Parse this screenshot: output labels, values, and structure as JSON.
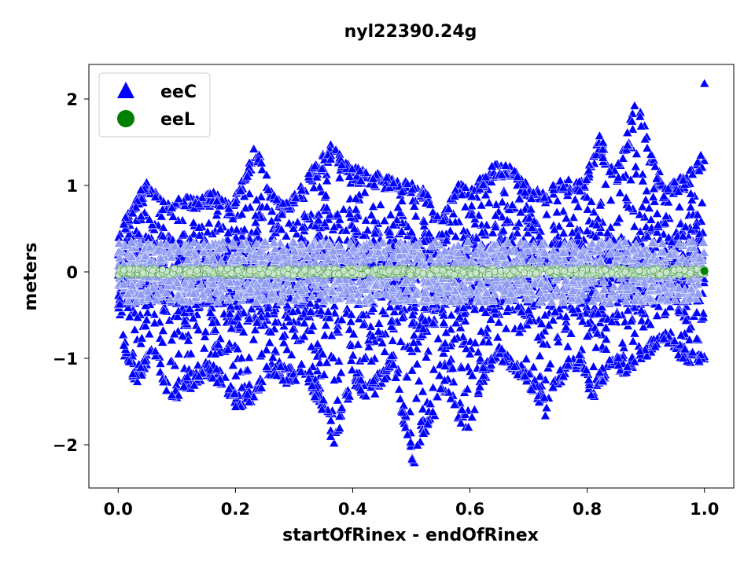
{
  "chart_data": {
    "type": "scatter",
    "title": "nyl22390.24g",
    "xlabel": "startOfRinex - endOfRinex",
    "ylabel": "meters",
    "xlim": [
      -0.05,
      1.05
    ],
    "ylim": [
      -2.5,
      2.4
    ],
    "xticks": [
      0.0,
      0.2,
      0.4,
      0.6,
      0.8,
      1.0
    ],
    "xtick_labels": [
      "0.0",
      "0.2",
      "0.4",
      "0.6",
      "0.8",
      "1.0"
    ],
    "yticks": [
      -2,
      -1,
      0,
      1,
      2
    ],
    "ytick_labels": [
      "−2",
      "−1",
      "0",
      "1",
      "2"
    ],
    "grid": false,
    "legend_position": "top-left",
    "series": [
      {
        "name": "eeC",
        "marker": "triangle",
        "color": "#0000ff",
        "envelope_upper": [
          [
            0.0,
            0.6
          ],
          [
            0.02,
            0.7
          ],
          [
            0.05,
            1.1
          ],
          [
            0.08,
            0.8
          ],
          [
            0.1,
            0.9
          ],
          [
            0.13,
            0.85
          ],
          [
            0.16,
            0.95
          ],
          [
            0.19,
            0.8
          ],
          [
            0.21,
            1.05
          ],
          [
            0.235,
            1.5
          ],
          [
            0.26,
            1.0
          ],
          [
            0.29,
            0.8
          ],
          [
            0.32,
            1.1
          ],
          [
            0.36,
            1.5
          ],
          [
            0.39,
            1.3
          ],
          [
            0.41,
            1.2
          ],
          [
            0.44,
            1.15
          ],
          [
            0.46,
            1.1
          ],
          [
            0.49,
            1.05
          ],
          [
            0.52,
            1.0
          ],
          [
            0.55,
            0.6
          ],
          [
            0.58,
            1.05
          ],
          [
            0.6,
            1.0
          ],
          [
            0.63,
            1.2
          ],
          [
            0.66,
            1.3
          ],
          [
            0.7,
            1.0
          ],
          [
            0.73,
            0.95
          ],
          [
            0.76,
            1.1
          ],
          [
            0.79,
            1.05
          ],
          [
            0.82,
            1.6
          ],
          [
            0.85,
            1.2
          ],
          [
            0.885,
            2.05
          ],
          [
            0.9,
            1.7
          ],
          [
            0.93,
            1.0
          ],
          [
            0.96,
            1.1
          ],
          [
            0.98,
            1.2
          ],
          [
            0.995,
            1.4
          ]
        ],
        "envelope_lower": [
          [
            0.0,
            -0.8
          ],
          [
            0.03,
            -1.3
          ],
          [
            0.06,
            -1.0
          ],
          [
            0.09,
            -1.5
          ],
          [
            0.12,
            -1.4
          ],
          [
            0.15,
            -1.2
          ],
          [
            0.17,
            -1.3
          ],
          [
            0.2,
            -1.6
          ],
          [
            0.23,
            -1.5
          ],
          [
            0.26,
            -1.2
          ],
          [
            0.29,
            -1.3
          ],
          [
            0.32,
            -1.2
          ],
          [
            0.345,
            -1.6
          ],
          [
            0.37,
            -2.1
          ],
          [
            0.4,
            -1.3
          ],
          [
            0.43,
            -1.5
          ],
          [
            0.47,
            -1.1
          ],
          [
            0.5,
            -2.3
          ],
          [
            0.53,
            -1.8
          ],
          [
            0.56,
            -1.4
          ],
          [
            0.6,
            -2.0
          ],
          [
            0.62,
            -1.3
          ],
          [
            0.65,
            -1.0
          ],
          [
            0.68,
            -1.2
          ],
          [
            0.71,
            -1.4
          ],
          [
            0.73,
            -1.7
          ],
          [
            0.76,
            -1.2
          ],
          [
            0.79,
            -1.1
          ],
          [
            0.81,
            -1.5
          ],
          [
            0.84,
            -1.1
          ],
          [
            0.87,
            -1.2
          ],
          [
            0.9,
            -1.0
          ],
          [
            0.93,
            -0.8
          ],
          [
            0.96,
            -1.0
          ],
          [
            0.99,
            -1.1
          ]
        ],
        "outliers": [
          [
            1.0,
            2.18
          ],
          [
            0.55,
            -1.35
          ]
        ]
      },
      {
        "name": "eeL",
        "marker": "circle",
        "color": "#008000",
        "values_summary": "near zero",
        "y_center": 0.0,
        "y_spread": 0.04,
        "last_point": [
          1.0,
          0.01
        ]
      }
    ]
  }
}
